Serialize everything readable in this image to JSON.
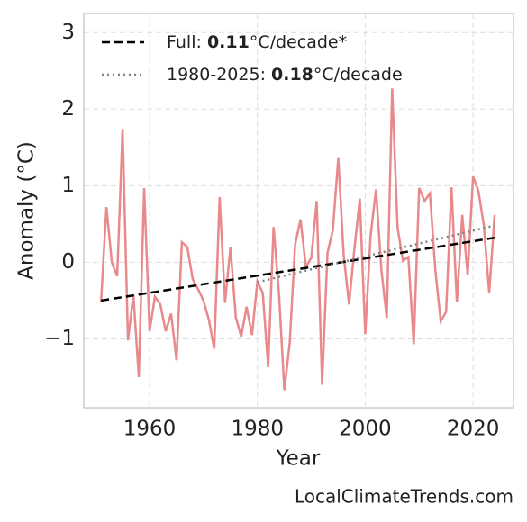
{
  "chart_data": {
    "type": "line",
    "x_label": "Year",
    "y_label": "Anomaly (°C)",
    "footer": "LocalClimateTrends.com",
    "xlim": [
      1947.8,
      2027.5
    ],
    "xticks": [
      1960,
      1980,
      2000,
      2020
    ],
    "ylim": [
      -1.9,
      3.25
    ],
    "yticks": [
      {
        "value": -1,
        "label": "−1"
      },
      0,
      1,
      2,
      3
    ],
    "grid": true,
    "legend": "upper left",
    "series": [
      {
        "color": "#e8898b",
        "style": "solid",
        "x": [
          1951,
          1952,
          1953,
          1954,
          1955,
          1956,
          1957,
          1958,
          1959,
          1960,
          1961,
          1962,
          1963,
          1964,
          1965,
          1966,
          1967,
          1968,
          1969,
          1970,
          1971,
          1972,
          1973,
          1974,
          1975,
          1976,
          1977,
          1978,
          1979,
          1980,
          1981,
          1982,
          1983,
          1984,
          1985,
          1986,
          1987,
          1988,
          1989,
          1990,
          1991,
          1992,
          1993,
          1994,
          1995,
          1996,
          1997,
          1998,
          1999,
          2000,
          2001,
          2002,
          2003,
          2004,
          2005,
          2006,
          2007,
          2008,
          2009,
          2010,
          2011,
          2012,
          2013,
          2014,
          2015,
          2016,
          2017,
          2018,
          2019,
          2020,
          2021,
          2022,
          2023,
          2024
        ],
        "values": [
          -0.52,
          0.72,
          0.0,
          -0.18,
          1.74,
          -1.02,
          -0.42,
          -1.5,
          0.97,
          -0.9,
          -0.45,
          -0.55,
          -0.9,
          -0.67,
          -1.28,
          0.26,
          0.2,
          -0.22,
          -0.35,
          -0.5,
          -0.75,
          -1.13,
          0.85,
          -0.53,
          0.2,
          -0.72,
          -0.97,
          -0.58,
          -0.95,
          -0.25,
          -0.4,
          -1.37,
          0.46,
          -0.4,
          -1.67,
          -1.05,
          0.23,
          0.56,
          -0.06,
          0.06,
          0.8,
          -1.6,
          0.12,
          0.42,
          1.36,
          0.1,
          -0.55,
          0.18,
          0.83,
          -0.94,
          0.35,
          0.95,
          -0.1,
          -0.73,
          2.27,
          0.45,
          0.02,
          0.07,
          -1.07,
          0.97,
          0.8,
          0.9,
          -0.1,
          -0.77,
          -0.65,
          0.98,
          -0.52,
          0.62,
          -0.17,
          1.12,
          0.93,
          0.48,
          -0.4,
          0.62
        ]
      },
      {
        "name": "Full: 0.11°C/decade*",
        "color": "#000000",
        "style": "dash",
        "x": [
          1951,
          2024
        ],
        "values": [
          -0.5,
          0.32
        ]
      },
      {
        "name": "1980-2025: 0.18°C/decade",
        "color": "#808080",
        "style": "dot",
        "x": [
          1980,
          2024
        ],
        "values": [
          -0.26,
          0.48
        ]
      }
    ]
  }
}
